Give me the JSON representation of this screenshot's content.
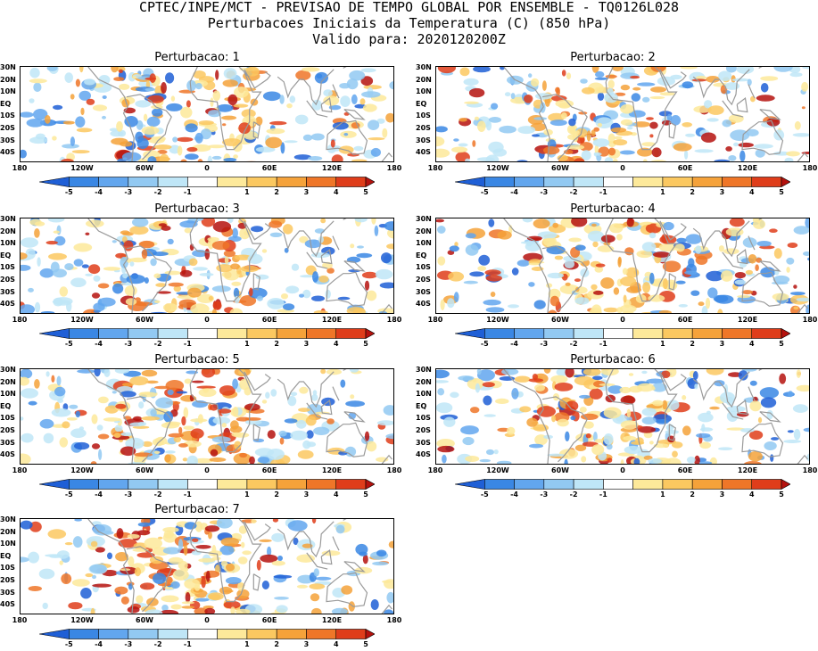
{
  "header": {
    "line1": "CPTEC/INPE/MCT - PREVISAO DE TEMPO GLOBAL POR ENSEMBLE - TQ0126L028",
    "line2": "Perturbacoes Iniciais da Temperatura (C) (850 hPa)",
    "line3": "Valido para: 2020120200Z"
  },
  "panels": [
    {
      "title": "Perturbacao: 1",
      "seed": 11
    },
    {
      "title": "Perturbacao: 2",
      "seed": 23
    },
    {
      "title": "Perturbacao: 3",
      "seed": 37
    },
    {
      "title": "Perturbacao: 4",
      "seed": 41
    },
    {
      "title": "Perturbacao: 5",
      "seed": 53
    },
    {
      "title": "Perturbacao: 6",
      "seed": 67
    },
    {
      "title": "Perturbacao: 7",
      "seed": 79
    }
  ],
  "map_axes": {
    "lat_labels": [
      "30N",
      "20N",
      "10N",
      "EQ",
      "10S",
      "20S",
      "30S",
      "40S"
    ],
    "lon_labels": [
      "180",
      "120W",
      "60W",
      "0",
      "60E",
      "120E",
      "180"
    ]
  },
  "colorbar": {
    "labels": [
      "-5",
      "-4",
      "-3",
      "-2",
      "-1",
      "1",
      "2",
      "3",
      "4",
      "5"
    ],
    "colors": [
      "#1f5fd6",
      "#3a87e4",
      "#62a6ee",
      "#92c9f2",
      "#bfe6f7",
      "#ffffff",
      "#fde99a",
      "#fbc860",
      "#f5a23a",
      "#ef7628",
      "#df3d1a",
      "#b5120e"
    ],
    "units": "C"
  }
}
